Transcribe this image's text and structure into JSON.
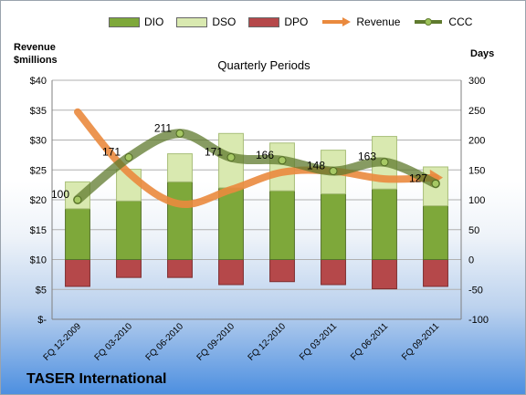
{
  "legend": {
    "dio": "DIO",
    "dso": "DSO",
    "dpo": "DPO",
    "revenue": "Revenue",
    "ccc": "CCC"
  },
  "company_name": "TASER International",
  "colors": {
    "dio": "#7ea83a",
    "dso": "#d9e9b0",
    "dpo": "#b5484a",
    "revenue": "#ea8a3e",
    "ccc": "#5f7a2e"
  },
  "chart_data": {
    "type": "bar",
    "title": "Quarterly Periods",
    "ylabel_left": [
      "Revenue",
      "$millions"
    ],
    "ylabel_right": "Days",
    "categories": [
      "FQ 12-2009",
      "FQ 03-2010",
      "FQ 06-2010",
      "FQ 09-2010",
      "FQ 12-2010",
      "FQ 03-2011",
      "FQ 06-2011",
      "FQ 09-2011"
    ],
    "left_axis": {
      "ylim": [
        0,
        40
      ],
      "ticks": [
        "$-",
        "$5",
        "$10",
        "$15",
        "$20",
        "$25",
        "$30",
        "$35",
        "$40"
      ]
    },
    "right_axis": {
      "ylim": [
        -100,
        300
      ],
      "ticks": [
        "-100",
        "-50",
        "0",
        "50",
        "100",
        "150",
        "200",
        "250",
        "300"
      ]
    },
    "series": [
      {
        "name": "DIO",
        "type": "bar",
        "axis": "right",
        "values": [
          85,
          98,
          130,
          120,
          115,
          110,
          118,
          90
        ]
      },
      {
        "name": "DSO",
        "type": "bar",
        "axis": "right",
        "values": [
          45,
          53,
          47,
          91,
          80,
          73,
          88,
          65
        ]
      },
      {
        "name": "DPO",
        "type": "bar",
        "axis": "right",
        "values": [
          -45,
          -30,
          -30,
          -42,
          -37,
          -42,
          -49,
          -45
        ]
      },
      {
        "name": "Revenue",
        "type": "line",
        "axis": "left",
        "values": [
          34.7,
          24.5,
          19.3,
          21.7,
          24.6,
          24.8,
          23.5,
          23.7
        ]
      },
      {
        "name": "CCC",
        "type": "line",
        "axis": "right",
        "values": [
          100,
          171,
          211,
          171,
          166,
          148,
          163,
          127
        ],
        "labels": [
          "100",
          "171",
          "211",
          "171",
          "166",
          "148",
          "163",
          "127"
        ]
      }
    ],
    "grid": true,
    "legend_position": "top"
  }
}
